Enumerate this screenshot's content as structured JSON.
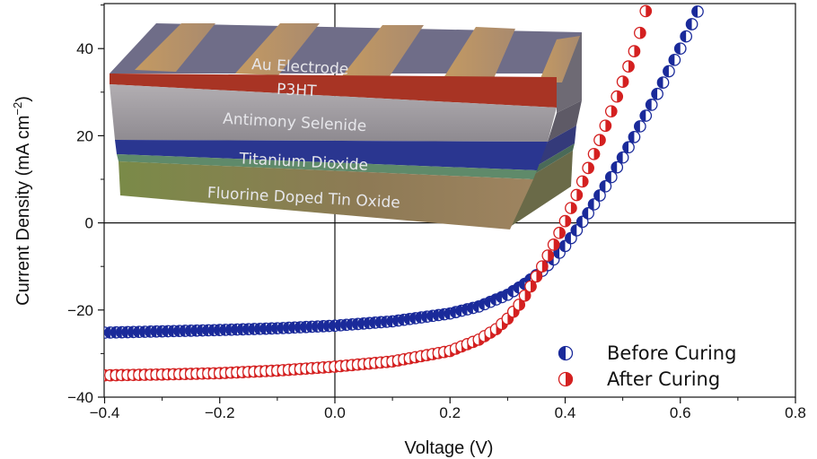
{
  "chart_data": {
    "type": "scatter",
    "xlabel": "Voltage (V)",
    "ylabel": "Current Density (mA cm",
    "ylabel_sup": "−2",
    "ylabel_close": ")",
    "xlim": [
      -0.4,
      0.8
    ],
    "ylim": [
      -40,
      50
    ],
    "xticks": [
      -0.4,
      -0.2,
      0.0,
      0.2,
      0.4,
      0.6,
      0.8
    ],
    "xtick_labels": [
      "−0.4",
      "−0.2",
      "0.0",
      "0.2",
      "0.4",
      "0.6",
      "0.8"
    ],
    "yticks": [
      -40,
      -20,
      0,
      20,
      40
    ],
    "ytick_labels": [
      "−40",
      "−20",
      "0",
      "20",
      "40"
    ],
    "zero_lines": true,
    "legend_position": "bottom-right",
    "series": [
      {
        "name": "Before Curing",
        "color": "#1a2a9a",
        "x": [
          -0.4,
          -0.3,
          -0.2,
          -0.1,
          0.0,
          0.1,
          0.2,
          0.25,
          0.3,
          0.33,
          0.36,
          0.38,
          0.4,
          0.42,
          0.44,
          0.46,
          0.48,
          0.5,
          0.52,
          0.54,
          0.56,
          0.58,
          0.6,
          0.62,
          0.63
        ],
        "y": [
          -25.2,
          -24.9,
          -24.6,
          -24.2,
          -23.6,
          -22.6,
          -20.8,
          -19.2,
          -16.5,
          -14.0,
          -11.0,
          -8.4,
          -5.3,
          -1.7,
          2.2,
          6.3,
          10.5,
          15.0,
          19.7,
          24.6,
          29.6,
          34.8,
          40.0,
          45.6,
          48.5
        ]
      },
      {
        "name": "After Curing",
        "color": "#d42020",
        "x": [
          -0.4,
          -0.3,
          -0.2,
          -0.1,
          0.0,
          0.1,
          0.2,
          0.25,
          0.28,
          0.3,
          0.32,
          0.34,
          0.36,
          0.38,
          0.4,
          0.42,
          0.44,
          0.46,
          0.48,
          0.5,
          0.52,
          0.53,
          0.54
        ],
        "y": [
          -35.0,
          -34.8,
          -34.5,
          -33.9,
          -33.0,
          -31.8,
          -29.4,
          -26.8,
          -24.4,
          -22.0,
          -18.8,
          -14.6,
          -10.0,
          -5.0,
          0.4,
          6.4,
          12.6,
          19.0,
          25.6,
          32.4,
          39.4,
          43.6,
          48.6
        ]
      }
    ]
  },
  "inset": {
    "layers": [
      "Au Electrode",
      "P3HT",
      "Antimony Selenide",
      "Titanium Dioxide",
      "Fluorine Doped Tin Oxide"
    ]
  }
}
